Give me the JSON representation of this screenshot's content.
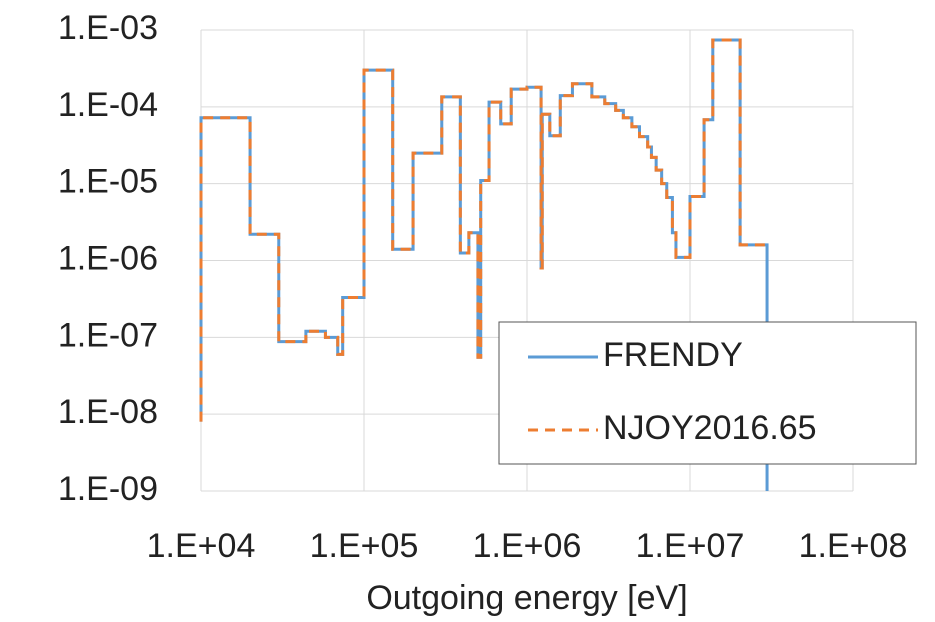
{
  "chart_data": {
    "type": "line",
    "step": true,
    "x_label": "Outgoing energy [eV]",
    "xscale": "log",
    "yscale": "log",
    "grid": true,
    "legend": "lower right",
    "xlim": [
      10000,
      100000000
    ],
    "xticks": [
      {
        "value": 10000,
        "label": "1.E+04"
      },
      {
        "value": 100000,
        "label": "1.E+05"
      },
      {
        "value": 1000000,
        "label": "1.E+06"
      },
      {
        "value": 10000000,
        "label": "1.E+07"
      },
      {
        "value": 100000000,
        "label": "1.E+08"
      }
    ],
    "ylim": [
      1e-09,
      0.001
    ],
    "yticks": [
      {
        "value": 1e-09,
        "label": "1.E-09"
      },
      {
        "value": 1e-08,
        "label": "1.E-08"
      },
      {
        "value": 1e-07,
        "label": "1.E-07"
      },
      {
        "value": 1e-06,
        "label": "1.E-06"
      },
      {
        "value": 1e-05,
        "label": "1.E-05"
      },
      {
        "value": 0.0001,
        "label": "1.E-04"
      },
      {
        "value": 0.001,
        "label": "1.E-03"
      }
    ],
    "x": [
      10000,
      10000,
      20000,
      20000,
      30000,
      30000,
      44000,
      44000,
      58000,
      58000,
      69000,
      69000,
      74000,
      74000,
      100000,
      100000,
      150000,
      150000,
      200000,
      200000,
      300000,
      300000,
      390000,
      390000,
      440000,
      440000,
      500000,
      500000,
      520000,
      520000,
      585000,
      585000,
      690000,
      690000,
      800000,
      800000,
      1000000,
      1000000,
      1220000,
      1220000,
      1240000,
      1240000,
      1380000,
      1380000,
      1600000,
      1600000,
      1900000,
      1900000,
      2500000,
      2500000,
      3000000,
      3000000,
      3500000,
      3500000,
      3900000,
      3900000,
      4400000,
      4400000,
      4900000,
      4900000,
      5500000,
      5500000,
      5800000,
      5800000,
      6200000,
      6200000,
      6700000,
      6700000,
      7200000,
      7200000,
      7800000,
      7800000,
      8200000,
      8200000,
      10000000,
      10000000,
      12200000,
      12200000,
      13800000,
      13800000,
      20300000,
      20300000,
      29700000,
      29700000
    ],
    "series": [
      {
        "name": "FRENDY",
        "color": "#5b9bd5",
        "dash": "none",
        "values": [
          8e-09,
          7.2e-05,
          7.2e-05,
          2.2e-06,
          2.2e-06,
          8.8e-08,
          8.8e-08,
          1.2e-07,
          1.2e-07,
          1e-07,
          1e-07,
          6e-08,
          6e-08,
          3.3e-07,
          3.3e-07,
          0.0003,
          0.0003,
          1.4e-06,
          1.4e-06,
          2.5e-05,
          2.5e-05,
          0.000135,
          0.000135,
          1.25e-06,
          1.25e-06,
          2.3e-06,
          2.3e-06,
          5.5e-08,
          5.5e-08,
          1.1e-05,
          1.1e-05,
          0.000115,
          0.000115,
          6e-05,
          6e-05,
          0.00017,
          0.00017,
          0.00018,
          0.00018,
          8e-07,
          8e-07,
          8e-05,
          8e-05,
          4.2e-05,
          4.2e-05,
          0.00014,
          0.00014,
          0.0002,
          0.0002,
          0.000135,
          0.000135,
          0.00011,
          0.00011,
          9e-05,
          9e-05,
          7.2e-05,
          7.2e-05,
          5.5e-05,
          5.5e-05,
          4.1e-05,
          4.1e-05,
          3e-05,
          3e-05,
          2.2e-05,
          2.2e-05,
          1.5e-05,
          1.5e-05,
          1e-05,
          1e-05,
          6.6e-06,
          6.6e-06,
          2.3e-06,
          2.3e-06,
          1.1e-06,
          1.1e-06,
          6.8e-06,
          6.8e-06,
          6.8e-05,
          6.8e-05,
          0.00074,
          0.00074,
          1.6e-06,
          1.6e-06,
          1e-09
        ]
      },
      {
        "name": "NJOY2016.65",
        "color": "#ed7d31",
        "dash": "10 7",
        "values": [
          8e-09,
          7.2e-05,
          7.2e-05,
          2.2e-06,
          2.2e-06,
          8.8e-08,
          8.8e-08,
          1.2e-07,
          1.2e-07,
          1e-07,
          1e-07,
          6e-08,
          6e-08,
          3.3e-07,
          3.3e-07,
          0.0003,
          0.0003,
          1.4e-06,
          1.4e-06,
          2.5e-05,
          2.5e-05,
          0.000135,
          0.000135,
          1.25e-06,
          1.25e-06,
          2.3e-06,
          2.3e-06,
          5.5e-08,
          5.5e-08,
          1.1e-05,
          1.1e-05,
          0.000115,
          0.000115,
          6e-05,
          6e-05,
          0.00017,
          0.00017,
          0.00018,
          0.00018,
          8e-07,
          8e-07,
          8e-05,
          8e-05,
          4.2e-05,
          4.2e-05,
          0.00014,
          0.00014,
          0.0002,
          0.0002,
          0.000135,
          0.000135,
          0.00011,
          0.00011,
          9e-05,
          9e-05,
          7.2e-05,
          7.2e-05,
          5.5e-05,
          5.5e-05,
          4.1e-05,
          4.1e-05,
          3e-05,
          3e-05,
          2.2e-05,
          2.2e-05,
          1.5e-05,
          1.5e-05,
          1e-05,
          1e-05,
          6.6e-06,
          6.6e-06,
          2.3e-06,
          2.3e-06,
          1.1e-06,
          1.1e-06,
          6.8e-06,
          6.8e-06,
          6.8e-05,
          6.8e-05,
          0.00074,
          0.00074,
          1.6e-06,
          1.6e-06,
          null
        ]
      }
    ]
  }
}
